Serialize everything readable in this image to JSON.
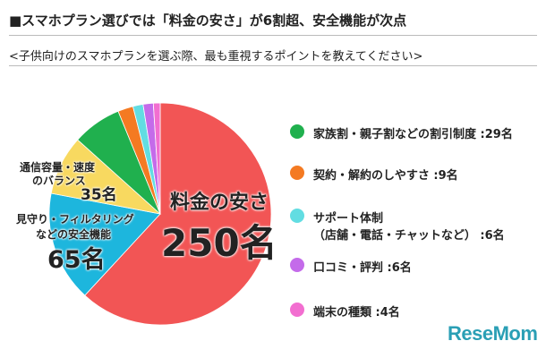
{
  "header": {
    "title": "■スマホプラン選びでは「料金の安さ」が6割超、安全機能が次点",
    "subtitle": "<子供向けのスマホプランを選ぶ際、最も重視するポイントを教えてください>"
  },
  "chart_data": {
    "type": "pie",
    "unit": "名",
    "start": "12 o'clock, clockwise",
    "slices": [
      {
        "label": "料金の安さ",
        "value": 250,
        "color": "#f25555",
        "display": "250名"
      },
      {
        "label": "見守り・フィルタリングなどの安全機能",
        "value": 65,
        "color": "#1db6dd",
        "display": "65名",
        "line1": "見守り・フィルタリング",
        "line2": "などの安全機能"
      },
      {
        "label": "通信容量・速度のバランス",
        "value": 35,
        "color": "#f8d960",
        "display": "35名",
        "line1": "通信容量・速度",
        "line2": "のバランス"
      },
      {
        "label": "家族割・親子割などの割引制度",
        "value": 29,
        "color": "#20b04e",
        "legend": "家族割・親子割などの割引制度 :29名"
      },
      {
        "label": "契約・解約のしやすさ",
        "value": 9,
        "color": "#f47a22",
        "legend": "契約・解約のしやすさ :9名"
      },
      {
        "label": "サポート体制（店舗・電話・チャットなど）",
        "value": 6,
        "color": "#62dde2",
        "legend": "サポート体制",
        "legend2": "（店舗・電話・チャットなど） :6名"
      },
      {
        "label": "口コミ・評判",
        "value": 6,
        "color": "#c46bea",
        "legend": "口コミ・評判 :6名"
      },
      {
        "label": "端末の種類",
        "value": 4,
        "color": "#f26ed0",
        "legend": "端末の種類 :4名"
      }
    ]
  },
  "logo": "ReseMom"
}
